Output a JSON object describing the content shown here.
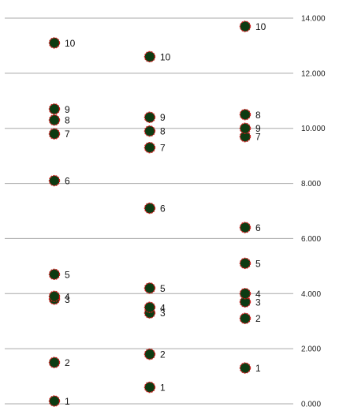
{
  "chart_data": {
    "type": "scatter",
    "title": "",
    "xlabel": "",
    "ylabel": "",
    "ylim": [
      0,
      14
    ],
    "y_ticks": [
      0,
      2,
      4,
      6,
      8,
      10,
      12,
      14
    ],
    "y_tick_labels": [
      "0.000",
      "2.000",
      "4.000",
      "6.000",
      "8.000",
      "10.000",
      "12.000",
      "14.000"
    ],
    "grid": true,
    "y_axis_position": "right",
    "marker_fill": "#0d3b12",
    "marker_edge": "#d11a1a",
    "series": [
      {
        "x": 1,
        "points": [
          {
            "label": "1",
            "y": 0.1
          },
          {
            "label": "2",
            "y": 1.5
          },
          {
            "label": "3",
            "y": 3.8
          },
          {
            "label": "4",
            "y": 3.9
          },
          {
            "label": "5",
            "y": 4.7
          },
          {
            "label": "6",
            "y": 8.1
          },
          {
            "label": "7",
            "y": 9.8
          },
          {
            "label": "8",
            "y": 10.3
          },
          {
            "label": "9",
            "y": 10.7
          },
          {
            "label": "10",
            "y": 13.1
          }
        ]
      },
      {
        "x": 2,
        "points": [
          {
            "label": "1",
            "y": 0.6
          },
          {
            "label": "2",
            "y": 1.8
          },
          {
            "label": "3",
            "y": 3.3
          },
          {
            "label": "4",
            "y": 3.5
          },
          {
            "label": "5",
            "y": 4.2
          },
          {
            "label": "6",
            "y": 7.1
          },
          {
            "label": "7",
            "y": 9.3
          },
          {
            "label": "8",
            "y": 9.9
          },
          {
            "label": "9",
            "y": 10.4
          },
          {
            "label": "10",
            "y": 12.6
          }
        ]
      },
      {
        "x": 3,
        "points": [
          {
            "label": "1",
            "y": 1.3
          },
          {
            "label": "2",
            "y": 3.1
          },
          {
            "label": "3",
            "y": 3.7
          },
          {
            "label": "4",
            "y": 4.0
          },
          {
            "label": "5",
            "y": 5.1
          },
          {
            "label": "6",
            "y": 6.4
          },
          {
            "label": "7",
            "y": 9.7
          },
          {
            "label": "8",
            "y": 10.5
          },
          {
            "label": "9",
            "y": 10.0
          },
          {
            "label": "10",
            "y": 13.7
          }
        ]
      }
    ]
  }
}
